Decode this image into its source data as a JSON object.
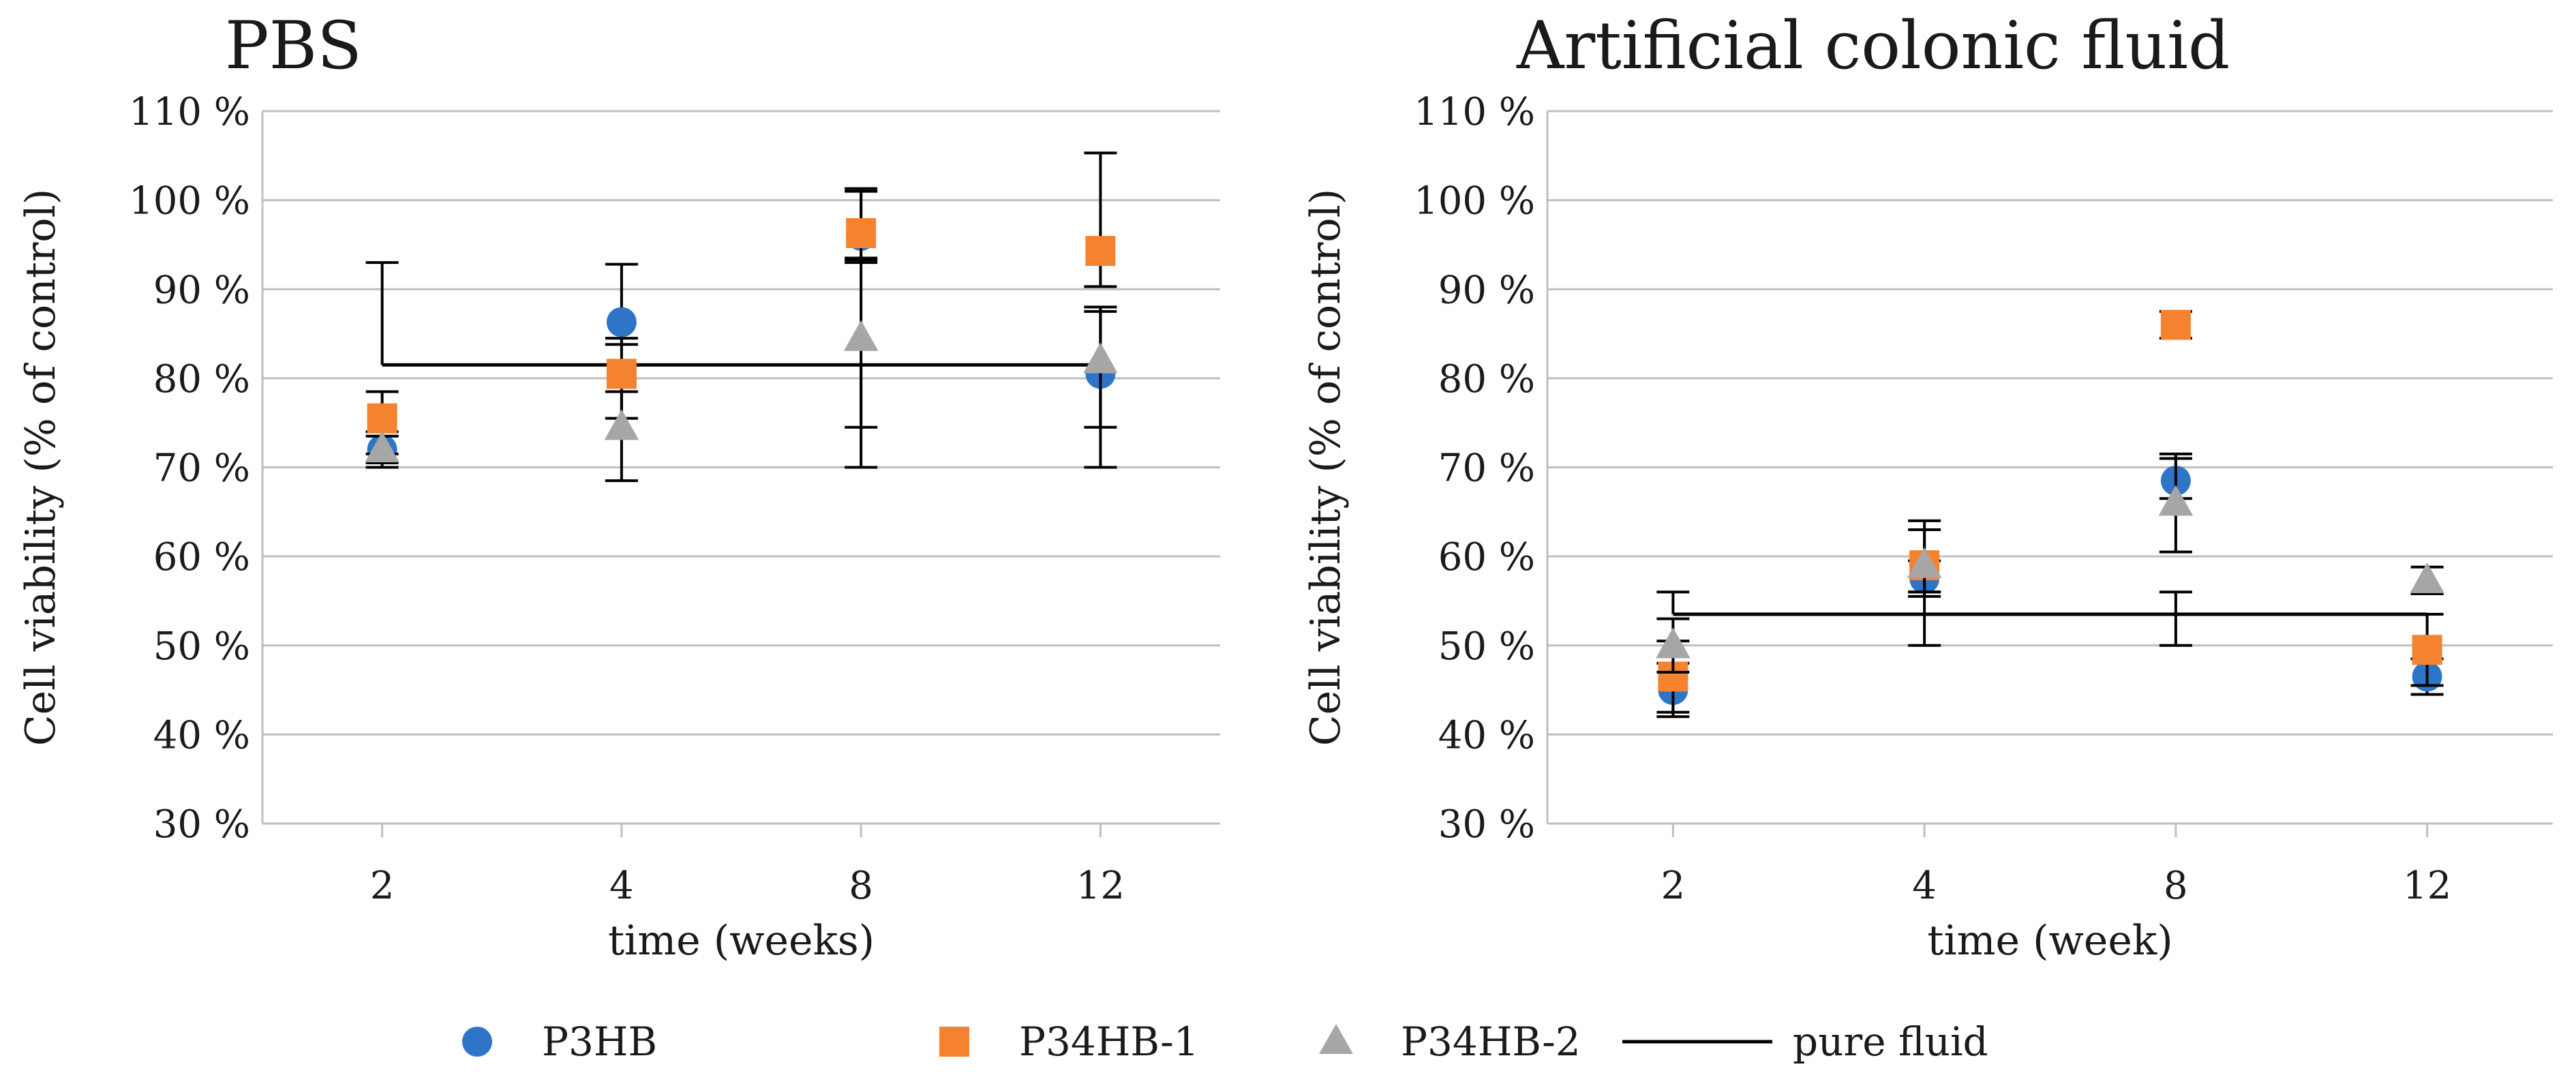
{
  "legend": {
    "items": [
      {
        "label": "P3HB",
        "marker": "circle",
        "color": "#2e75c8"
      },
      {
        "label": "P34HB-1",
        "marker": "square",
        "color": "#f4822e"
      },
      {
        "label": "P34HB-2",
        "marker": "triangle",
        "color": "#a6a6a6"
      },
      {
        "label": "pure fluid",
        "marker": "line",
        "color": "#000000"
      }
    ]
  },
  "chart_data": [
    {
      "type": "scatter",
      "title": "PBS",
      "xlabel": "time (weeks)",
      "ylabel": "Cell viability (% of control)",
      "categories": [
        "2",
        "4",
        "8",
        "12"
      ],
      "yticks": [
        "30 %",
        "40 %",
        "50 %",
        "60 %",
        "70 %",
        "80 %",
        "90 %",
        "100 %",
        "110 %"
      ],
      "ylim": [
        30,
        110
      ],
      "grid": true,
      "series": [
        {
          "name": "P3HB",
          "marker": "circle",
          "color": "#2e75c8",
          "values": [
            72,
            86.3,
            96,
            80.5
          ],
          "err_low": [
            2,
            2.5,
            3,
            6
          ],
          "err_high": [
            2,
            6.5,
            5,
            7
          ]
        },
        {
          "name": "P34HB-1",
          "marker": "square",
          "color": "#f4822e",
          "values": [
            75.5,
            80.5,
            96.3,
            94.3
          ],
          "err_low": [
            4,
            5,
            3,
            4
          ],
          "err_high": [
            3,
            4,
            5,
            11
          ]
        },
        {
          "name": "P34HB-2",
          "marker": "triangle",
          "color": "#a6a6a6",
          "values": [
            72,
            74.5,
            84.5,
            82
          ],
          "err_low": [
            1.5,
            6,
            10,
            12
          ],
          "err_high": [
            1.5,
            4,
            9,
            6
          ]
        },
        {
          "name": "pure fluid",
          "type": "line",
          "color": "#000000",
          "values": [
            81.5,
            81.5,
            81.5,
            81.5
          ],
          "err_low": [
            0,
            0,
            11.5,
            0
          ],
          "err_high": [
            11.5,
            0,
            0,
            0
          ]
        }
      ]
    },
    {
      "type": "scatter",
      "title": "Artificial colonic fluid",
      "xlabel": "time (week)",
      "ylabel": "Cell viability (% of control)",
      "categories": [
        "2",
        "4",
        "8",
        "12"
      ],
      "yticks": [
        "30 %",
        "40 %",
        "50 %",
        "60 %",
        "70 %",
        "80 %",
        "90 %",
        "100 %",
        "110 %"
      ],
      "ylim": [
        30,
        110
      ],
      "grid": true,
      "series": [
        {
          "name": "P3HB",
          "marker": "circle",
          "color": "#2e75c8",
          "values": [
            45,
            57.5,
            68.5,
            46.5
          ],
          "err_low": [
            3,
            2,
            2,
            2
          ],
          "err_high": [
            3,
            2,
            3,
            2
          ]
        },
        {
          "name": "P34HB-1",
          "marker": "square",
          "color": "#f4822e",
          "values": [
            46.5,
            59,
            86,
            49.5
          ],
          "err_low": [
            4,
            3,
            1.5,
            4
          ],
          "err_high": [
            4,
            4,
            1.5,
            4
          ]
        },
        {
          "name": "P34HB-2",
          "marker": "triangle",
          "color": "#a6a6a6",
          "values": [
            50,
            59,
            66,
            57.3
          ],
          "err_low": [
            3,
            3,
            5.5,
            1.5
          ],
          "err_high": [
            3,
            5,
            5,
            1.5
          ]
        },
        {
          "name": "pure fluid",
          "type": "line",
          "color": "#000000",
          "values": [
            53.5,
            53.5,
            53.5,
            53.5
          ],
          "err_low": [
            0,
            3.5,
            3.5,
            0
          ],
          "err_high": [
            2.5,
            2.5,
            2.5,
            0
          ]
        }
      ]
    }
  ]
}
